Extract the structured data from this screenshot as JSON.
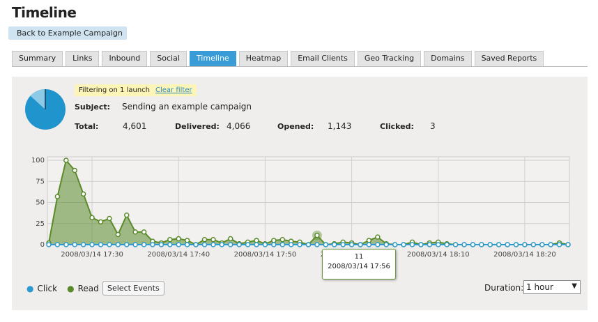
{
  "header": {
    "title": "Timeline",
    "back": "Back to Example Campaign"
  },
  "tabs": [
    "Summary",
    "Links",
    "Inbound",
    "Social",
    "Timeline",
    "Heatmap",
    "Email Clients",
    "Geo Tracking",
    "Domains",
    "Saved Reports"
  ],
  "active_tab": 4,
  "filter": {
    "text": "Filtering on 1 launch",
    "link": "Clear filter"
  },
  "summary": {
    "subject_label": "Subject:",
    "subject": "Sending an example campaign",
    "stats": [
      {
        "label": "Total:",
        "value": "4,601"
      },
      {
        "label": "Delivered:",
        "value": "4,066"
      },
      {
        "label": "Opened:",
        "value": "1,143"
      },
      {
        "label": "Clicked:",
        "value": "3"
      }
    ]
  },
  "chart_data": {
    "type": "line",
    "categories": [
      null,
      null,
      null,
      null,
      null,
      "2008/03/14 17:30",
      null,
      null,
      null,
      null,
      null,
      null,
      null,
      null,
      null,
      "2008/03/14 17:40",
      null,
      null,
      null,
      null,
      null,
      null,
      null,
      null,
      null,
      "2008/03/14 17:50",
      null,
      null,
      null,
      null,
      null,
      null,
      null,
      null,
      null,
      "2008/03/14 18:00",
      null,
      null,
      null,
      null,
      null,
      null,
      null,
      null,
      null,
      "2008/03/14 18:10",
      null,
      null,
      null,
      null,
      null,
      null,
      null,
      null,
      null,
      "2008/03/14 18:20",
      null,
      null,
      null,
      null,
      null
    ],
    "series": [
      {
        "name": "Click",
        "color": "#2a9ad0",
        "values": [
          0,
          0,
          0,
          0,
          0,
          0,
          0,
          0,
          0,
          0,
          0,
          0,
          0,
          0,
          0,
          0,
          0,
          0,
          0,
          0,
          0,
          0,
          0,
          0,
          0,
          0,
          0,
          0,
          0,
          0,
          0,
          0,
          0,
          0,
          0,
          0,
          0,
          0,
          0,
          0,
          0,
          0,
          0,
          0,
          0,
          0,
          0,
          0,
          0,
          0,
          0,
          0,
          0,
          0,
          0,
          0,
          0,
          0,
          0,
          0,
          0
        ]
      },
      {
        "name": "Read",
        "color": "#5b8a2b",
        "values": [
          2,
          57,
          100,
          88,
          60,
          32,
          27,
          31,
          12,
          35,
          15,
          15,
          4,
          2,
          6,
          7,
          5,
          0,
          6,
          6,
          2,
          7,
          1,
          3,
          5,
          1,
          5,
          6,
          4,
          3,
          0,
          11,
          0,
          1,
          3,
          2,
          0,
          5,
          9,
          1,
          0,
          0,
          3,
          0,
          2,
          3,
          1,
          0,
          0,
          0,
          0,
          0,
          0,
          0,
          0,
          0,
          0,
          0,
          0,
          2,
          0
        ]
      }
    ],
    "ylim": [
      0,
      100
    ],
    "yticks": [
      0,
      25,
      50,
      75,
      100
    ],
    "grid": true
  },
  "tooltip": {
    "value": "11",
    "time": "2008/03/14 17:56"
  },
  "controls": {
    "select_events": "Select Events",
    "duration_label": "Duration:",
    "duration": "1 hour"
  }
}
